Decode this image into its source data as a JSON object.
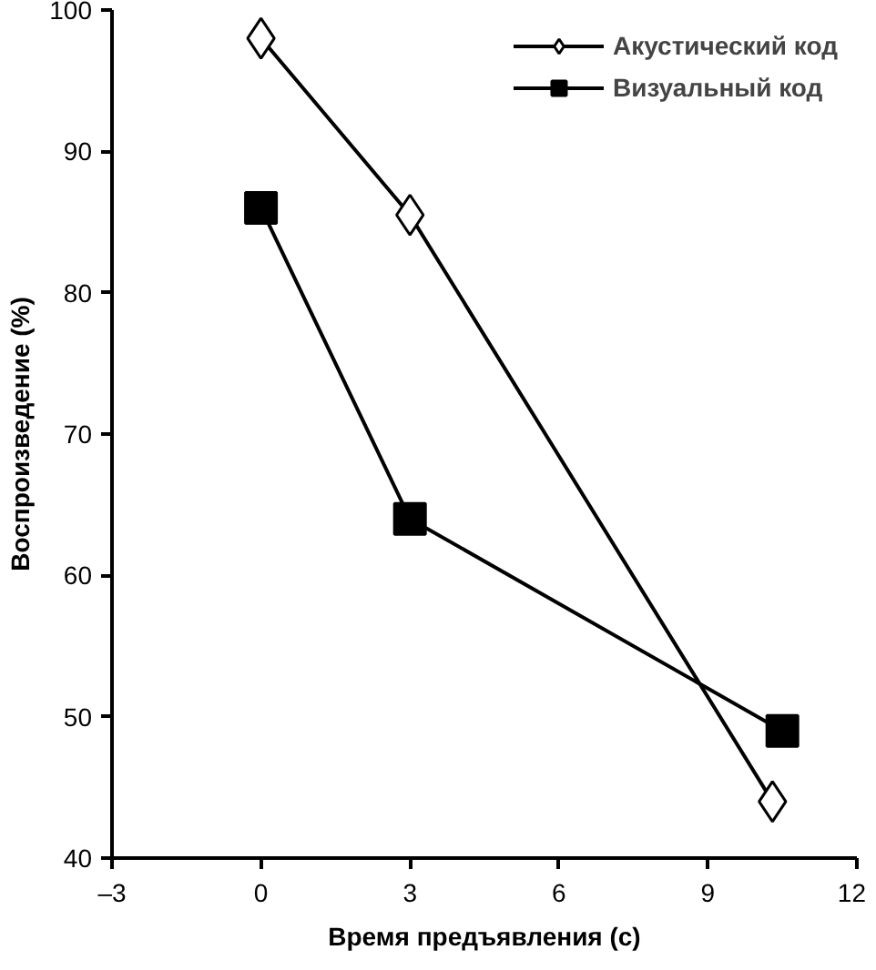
{
  "chart_data": {
    "type": "line",
    "xlabel": "Время предъявления (с)",
    "ylabel": "Воспроизведение (%)",
    "xlim": [
      -3,
      12
    ],
    "xticks": [
      {
        "value": -3,
        "label": "–3"
      },
      0,
      3,
      6,
      9,
      12
    ],
    "ylim": [
      40,
      100
    ],
    "yticks": [
      40,
      50,
      60,
      70,
      80,
      90,
      100
    ],
    "grid": false,
    "legend": "top right",
    "line_style": "solid",
    "series": [
      {
        "name": "Акустический код",
        "color": "#000000",
        "marker": "diamond",
        "x": [
          0,
          3,
          10.3
        ],
        "values": [
          98,
          85.5,
          44
        ]
      },
      {
        "name": "Визуальный код",
        "color": "#000000",
        "marker": "square",
        "x": [
          0,
          3,
          10.5
        ],
        "values": [
          86,
          64,
          49
        ]
      }
    ]
  }
}
